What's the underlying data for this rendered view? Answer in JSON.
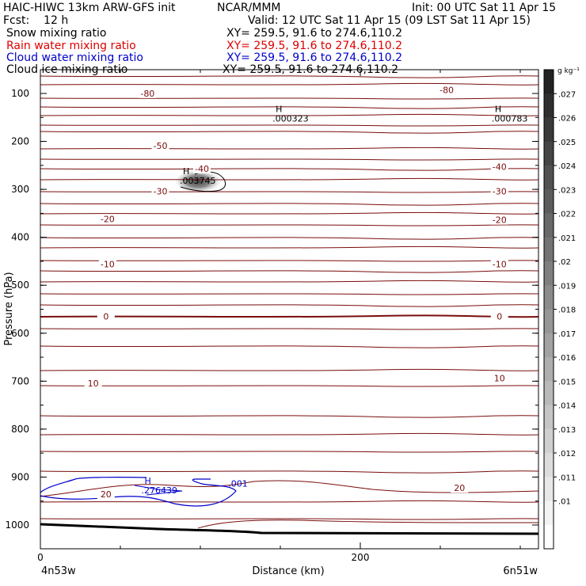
{
  "header": {
    "line1_left": "HAIC-HIWC 13km ARW-GFS init",
    "line1_center": "NCAR/MMM",
    "line1_right": "Init: 00 UTC Sat 11 Apr 15",
    "line2_left": "Fcst:    12 h",
    "line2_right": "Valid: 12 UTC Sat 11 Apr 15 (09 LST Sat 11 Apr 15)"
  },
  "legend": [
    {
      "label": "Snow mixing ratio",
      "xy": "XY= 259.5, 91.6 to 274.6,110.2",
      "color": "#000000"
    },
    {
      "label": "Rain water mixing ratio",
      "xy": "XY= 259.5, 91.6 to 274.6,110.2",
      "color": "#dd0000"
    },
    {
      "label": "Cloud water mixing ratio",
      "xy": "XY= 259.5, 91.6 to 274.6,110.2",
      "color": "#0000cc"
    },
    {
      "label": "Cloud ice mixing ratio",
      "xy": "XY= 259.5, 91.6 to 274.6,110.2",
      "color": "#000000"
    }
  ],
  "colorbar": {
    "unit": "g kg⁻¹",
    "labels": [
      ".027",
      ".026",
      ".025",
      ".024",
      ".023",
      ".022",
      ".021",
      ".02",
      ".019",
      ".018",
      ".017",
      ".016",
      ".015",
      ".014",
      ".013",
      ".012",
      ".011",
      ".01"
    ]
  },
  "chart_data": {
    "type": "cross-section",
    "ylabel": "Pressure (hPa)",
    "xlabel": "Distance (km)",
    "y_ticks": [
      100,
      200,
      300,
      400,
      500,
      600,
      700,
      800,
      900,
      1000
    ],
    "x_ticks": [
      0,
      200
    ],
    "ylim": [
      1040,
      50
    ],
    "xlim": [
      0,
      310
    ],
    "x_endpoint_labels": {
      "left": "4n53w",
      "right": "6n51w"
    },
    "temperature_contour_labels": [
      {
        "text": "-80",
        "x": 67,
        "p": 103
      },
      {
        "text": "-80",
        "x": 254,
        "p": 96
      },
      {
        "text": "-50",
        "x": 75,
        "p": 212
      },
      {
        "text": "-40",
        "x": 101,
        "p": 260
      },
      {
        "text": "-40",
        "x": 287,
        "p": 256
      },
      {
        "text": "-30",
        "x": 75,
        "p": 307
      },
      {
        "text": "-30",
        "x": 287,
        "p": 307
      },
      {
        "text": "-20",
        "x": 42,
        "p": 365
      },
      {
        "text": "-20",
        "x": 287,
        "p": 367
      },
      {
        "text": "-10",
        "x": 42,
        "p": 459
      },
      {
        "text": "-10",
        "x": 287,
        "p": 459
      },
      {
        "text": "0",
        "x": 41,
        "p": 568
      },
      {
        "text": "0",
        "x": 287,
        "p": 568
      },
      {
        "text": "10",
        "x": 33,
        "p": 708
      },
      {
        "text": "10",
        "x": 287,
        "p": 697
      },
      {
        "text": "20",
        "x": 41,
        "p": 939
      },
      {
        "text": "20",
        "x": 262,
        "p": 926
      }
    ],
    "maxima": [
      {
        "text": ".000323",
        "x": 156,
        "p": 154
      },
      {
        "text": ".000783",
        "x": 293,
        "p": 154
      },
      {
        "text": ".003745",
        "x": 98,
        "p": 283
      },
      {
        "text": ".276439",
        "x": 74,
        "p": 929
      }
    ],
    "cloud_water_label": {
      "text": ".001",
      "x": 115,
      "p": 915
    }
  }
}
